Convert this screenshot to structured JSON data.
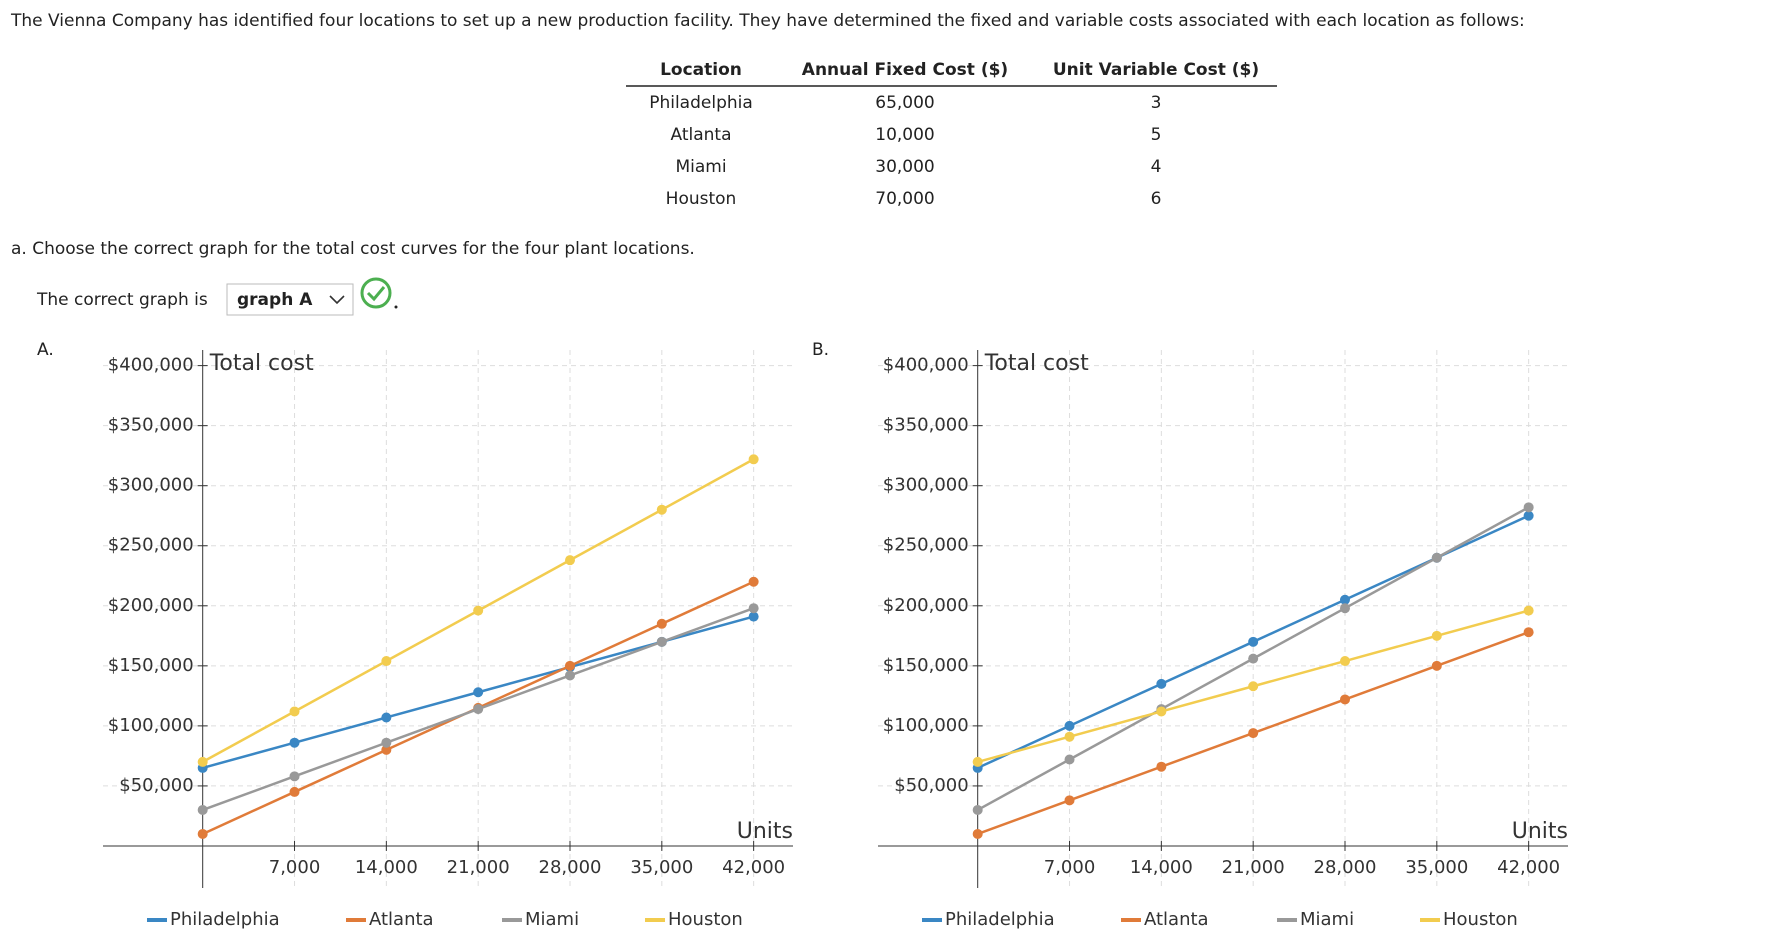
{
  "intro": "The Vienna Company has identified four locations to set up a new production facility. They have determined the fixed and variable costs associated with each location as follows:",
  "table": {
    "headers": [
      "Location",
      "Annual Fixed Cost ($)",
      "Unit Variable Cost ($)"
    ],
    "rows": [
      [
        "Philadelphia",
        "65,000",
        "3"
      ],
      [
        "Atlanta",
        "10,000",
        "5"
      ],
      [
        "Miami",
        "30,000",
        "4"
      ],
      [
        "Houston",
        "70,000",
        "6"
      ]
    ]
  },
  "question": "a. Choose the correct graph for the total cost curves for the four plant locations.",
  "answer_prompt": "The correct graph is",
  "answer": "graph A",
  "chart_data": [
    {
      "type": "line",
      "label": "A.",
      "title": "Total cost",
      "x_label": "Units",
      "x": [
        0,
        7000,
        14000,
        21000,
        28000,
        35000,
        42000
      ],
      "series": [
        {
          "name": "Philadelphia",
          "color": "#3a87c4",
          "values": [
            65000,
            86000,
            107000,
            128000,
            149000,
            170000,
            191000
          ]
        },
        {
          "name": "Atlanta",
          "color": "#e07b39",
          "values": [
            10000,
            45000,
            80000,
            115000,
            150000,
            185000,
            220000
          ]
        },
        {
          "name": "Miami",
          "color": "#999999",
          "values": [
            30000,
            58000,
            86000,
            114000,
            142000,
            170000,
            198000
          ]
        },
        {
          "name": "Houston",
          "color": "#f2cc4f",
          "values": [
            70000,
            112000,
            154000,
            196000,
            238000,
            280000,
            322000
          ]
        }
      ],
      "xlim": [
        -7600,
        45000
      ],
      "ylim": [
        -35000,
        413000
      ],
      "xticks": [
        {
          "value": 7000,
          "label": "7,000"
        },
        {
          "value": 14000,
          "label": "14,000"
        },
        {
          "value": 21000,
          "label": "21,000"
        },
        {
          "value": 28000,
          "label": "28,000"
        },
        {
          "value": 35000,
          "label": "35,000"
        },
        {
          "value": 42000,
          "label": "42,000"
        }
      ],
      "yticks": [
        {
          "value": 50000,
          "label": "$50,000"
        },
        {
          "value": 100000,
          "label": "$100,000"
        },
        {
          "value": 150000,
          "label": "$150,000"
        },
        {
          "value": 200000,
          "label": "$200,000"
        },
        {
          "value": 250000,
          "label": "$250,000"
        },
        {
          "value": 300000,
          "label": "$300,000"
        },
        {
          "value": 350000,
          "label": "$350,000"
        },
        {
          "value": 400000,
          "label": "$400,000"
        }
      ],
      "grid": true,
      "legend": "bottom"
    },
    {
      "type": "line",
      "label": "B.",
      "title": "Total cost",
      "x_label": "Units",
      "x": [
        0,
        7000,
        14000,
        21000,
        28000,
        35000,
        42000
      ],
      "series": [
        {
          "name": "Philadelphia",
          "color": "#3a87c4",
          "values": [
            65000,
            100000,
            135000,
            170000,
            205000,
            240000,
            275000
          ]
        },
        {
          "name": "Atlanta",
          "color": "#e07b39",
          "values": [
            10000,
            38000,
            66000,
            94000,
            122000,
            150000,
            178000
          ]
        },
        {
          "name": "Miami",
          "color": "#999999",
          "values": [
            30000,
            72000,
            114000,
            156000,
            198000,
            240000,
            282000
          ]
        },
        {
          "name": "Houston",
          "color": "#f2cc4f",
          "values": [
            70000,
            91000,
            112000,
            133000,
            154000,
            175000,
            196000
          ]
        }
      ],
      "xlim": [
        -7600,
        45000
      ],
      "ylim": [
        -35000,
        413000
      ],
      "xticks": [
        {
          "value": 7000,
          "label": "7,000"
        },
        {
          "value": 14000,
          "label": "14,000"
        },
        {
          "value": 21000,
          "label": "21,000"
        },
        {
          "value": 28000,
          "label": "28,000"
        },
        {
          "value": 35000,
          "label": "35,000"
        },
        {
          "value": 42000,
          "label": "42,000"
        }
      ],
      "yticks": [
        {
          "value": 50000,
          "label": "$50,000"
        },
        {
          "value": 100000,
          "label": "$100,000"
        },
        {
          "value": 150000,
          "label": "$150,000"
        },
        {
          "value": 200000,
          "label": "$200,000"
        },
        {
          "value": 250000,
          "label": "$250,000"
        },
        {
          "value": 300000,
          "label": "$300,000"
        },
        {
          "value": 350000,
          "label": "$350,000"
        },
        {
          "value": 400000,
          "label": "$400,000"
        }
      ],
      "grid": true,
      "legend": "bottom"
    }
  ]
}
